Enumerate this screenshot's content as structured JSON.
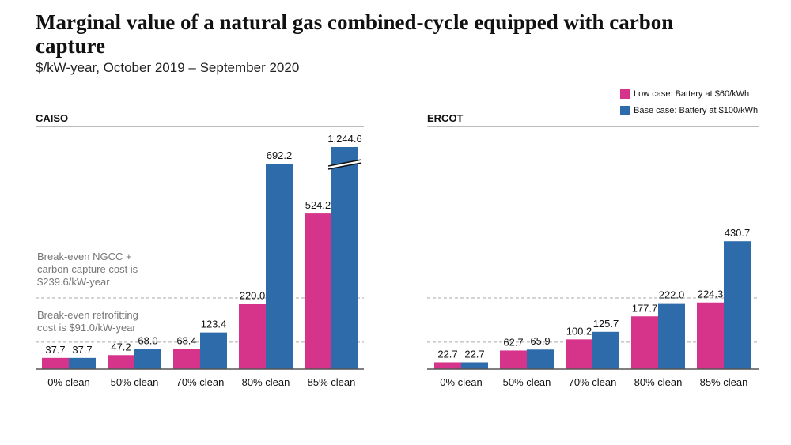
{
  "title": "Marginal value of a natural gas combined-cycle equipped with carbon capture",
  "subtitle": "$/kW-year, October 2019 – September 2020",
  "colors": {
    "low": "#d6338a",
    "base": "#2e6bab",
    "refline": "#aaaaaa",
    "axis": "#555555"
  },
  "legend": [
    {
      "label": "Low case: Battery at $60/kWh",
      "color": "#d6338a"
    },
    {
      "label": "Base case: Battery at $100/kWh",
      "color": "#2e6bab"
    }
  ],
  "annotations": {
    "ngcc": [
      "Break-even NGCC +",
      "carbon capture cost is",
      "$239.6/kW-year"
    ],
    "retrofit": [
      "Break-even retrofitting",
      "cost is $91.0/kW-year"
    ]
  },
  "chart_data": [
    {
      "type": "bar",
      "title": "CAISO",
      "categories": [
        "0% clean",
        "50% clean",
        "70% clean",
        "80% clean",
        "85% clean"
      ],
      "series": [
        {
          "name": "Low case: Battery at $60/kWh",
          "values": [
            37.7,
            47.2,
            68.4,
            220.0,
            524.2
          ],
          "labels": [
            "37.7",
            "47.2",
            "68.4",
            "220.0",
            "524.2"
          ]
        },
        {
          "name": "Base case: Battery at $100/kWh",
          "values": [
            37.7,
            68.0,
            123.4,
            692.2,
            1244.6
          ],
          "labels": [
            "37.7",
            "68.0",
            "123.4",
            "692.2",
            "1,244.6"
          ]
        }
      ],
      "axis_break": {
        "series": 1,
        "category": 4
      },
      "reference_lines": [
        239.6,
        91.0
      ],
      "ylim": [
        0,
        750
      ]
    },
    {
      "type": "bar",
      "title": "ERCOT",
      "categories": [
        "0% clean",
        "50% clean",
        "70% clean",
        "80% clean",
        "85% clean"
      ],
      "series": [
        {
          "name": "Low case: Battery at $60/kWh",
          "values": [
            22.7,
            62.7,
            100.2,
            177.7,
            224.3
          ],
          "labels": [
            "22.7",
            "62.7",
            "100.2",
            "177.7",
            "224.3"
          ]
        },
        {
          "name": "Base case: Battery at $100/kWh",
          "values": [
            22.7,
            65.9,
            125.7,
            222.0,
            430.7
          ],
          "labels": [
            "22.7",
            "65.9",
            "125.7",
            "222.0",
            "430.7"
          ]
        }
      ],
      "reference_lines": [
        239.6,
        91.0
      ],
      "ylim": [
        0,
        750
      ]
    }
  ]
}
